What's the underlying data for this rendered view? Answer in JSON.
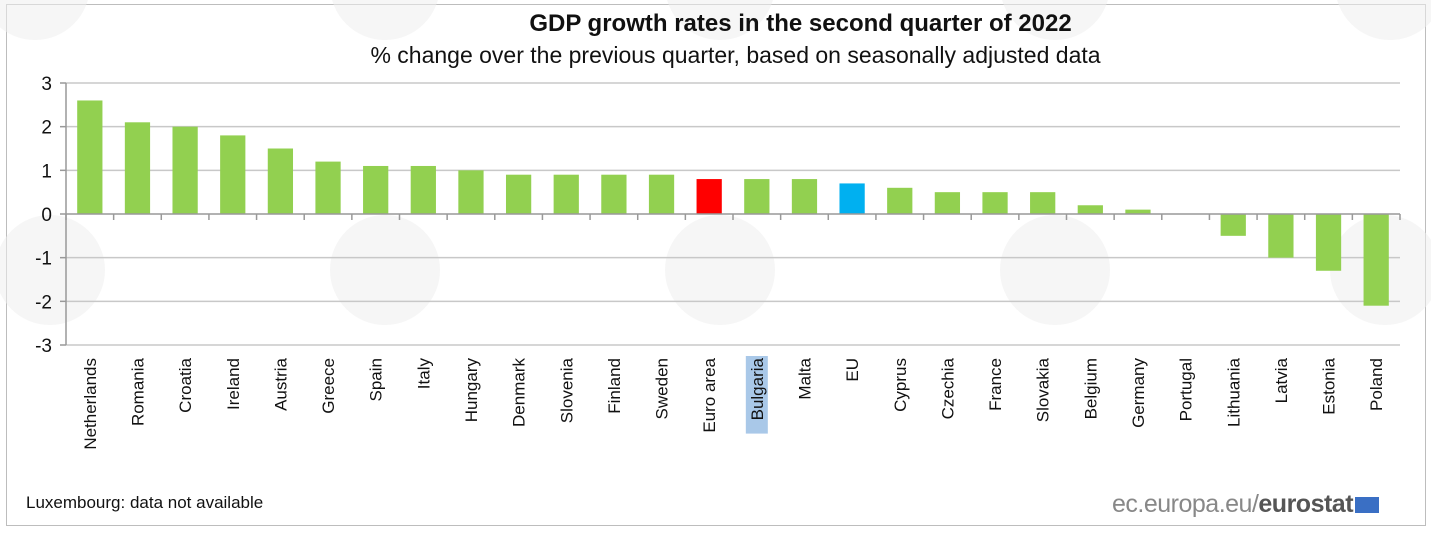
{
  "chart_data": {
    "type": "bar",
    "title": "GDP growth rates in the second quarter of 2022",
    "subtitle": "% change over the previous quarter, based on seasonally adjusted data",
    "xlabel": "",
    "ylabel": "",
    "ylim": [
      -3,
      3
    ],
    "yticks": [
      3,
      2,
      1,
      0,
      -1,
      -2,
      -3
    ],
    "grid": true,
    "categories": [
      "Netherlands",
      "Romania",
      "Croatia",
      "Ireland",
      "Austria",
      "Greece",
      "Spain",
      "Italy",
      "Hungary",
      "Denmark",
      "Slovenia",
      "Finland",
      "Sweden",
      "Euro area",
      "Bulgaria",
      "Malta",
      "EU",
      "Cyprus",
      "Czechia",
      "France",
      "Slovakia",
      "Belgium",
      "Germany",
      "Portugal",
      "Lithuania",
      "Latvia",
      "Estonia",
      "Poland"
    ],
    "values": [
      2.6,
      2.1,
      2.0,
      1.8,
      1.5,
      1.2,
      1.1,
      1.1,
      1.0,
      0.9,
      0.9,
      0.9,
      0.9,
      0.8,
      0.8,
      0.8,
      0.7,
      0.6,
      0.5,
      0.5,
      0.5,
      0.2,
      0.1,
      0.0,
      -0.5,
      -1.0,
      -1.3,
      -2.1
    ],
    "colors": {
      "default": "#92d050",
      "Euro area": "#ff0000",
      "EU": "#00b0f0"
    },
    "highlighted_label": "Bulgaria",
    "highlight_color": "#a9c8e8"
  },
  "footer": {
    "note": "Luxembourg: data not available",
    "source_prefix": "ec.europa.eu/",
    "source_brand": "eurostat"
  }
}
